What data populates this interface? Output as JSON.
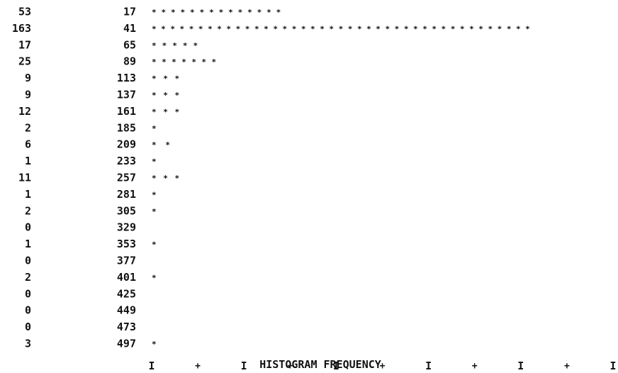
{
  "chart_data": {
    "type": "bar",
    "orientation": "horizontal",
    "categories": [
      "17",
      "41",
      "65",
      "89",
      "113",
      "137",
      "161",
      "185",
      "209",
      "233",
      "257",
      "281",
      "305",
      "329",
      "353",
      "377",
      "401",
      "425",
      "449",
      "473",
      "497"
    ],
    "values": [
      53,
      163,
      17,
      25,
      9,
      9,
      12,
      2,
      6,
      1,
      11,
      1,
      2,
      0,
      1,
      0,
      2,
      0,
      0,
      0,
      3
    ],
    "count_labels": [
      "53",
      "163",
      "17",
      "25",
      "9",
      "9",
      "12",
      "2",
      "6",
      "1",
      "11",
      "1",
      "2",
      "0",
      "1",
      "0",
      "2",
      "0",
      "0",
      "0",
      "3"
    ],
    "bar_char": "*",
    "units_per_char": 4,
    "xlim": [
      0,
      200
    ],
    "x_ticks": [
      "0",
      "40",
      "80",
      "120",
      "160",
      "200"
    ],
    "x_axis_marks": "I + I + I + I + I + I",
    "xlabel": "HISTOGRAM FREQUENCY",
    "title": "",
    "ylabel": "",
    "grid": false,
    "legend": "none",
    "colors": {
      "ink": "#111111",
      "paper": "#ffffff"
    }
  }
}
